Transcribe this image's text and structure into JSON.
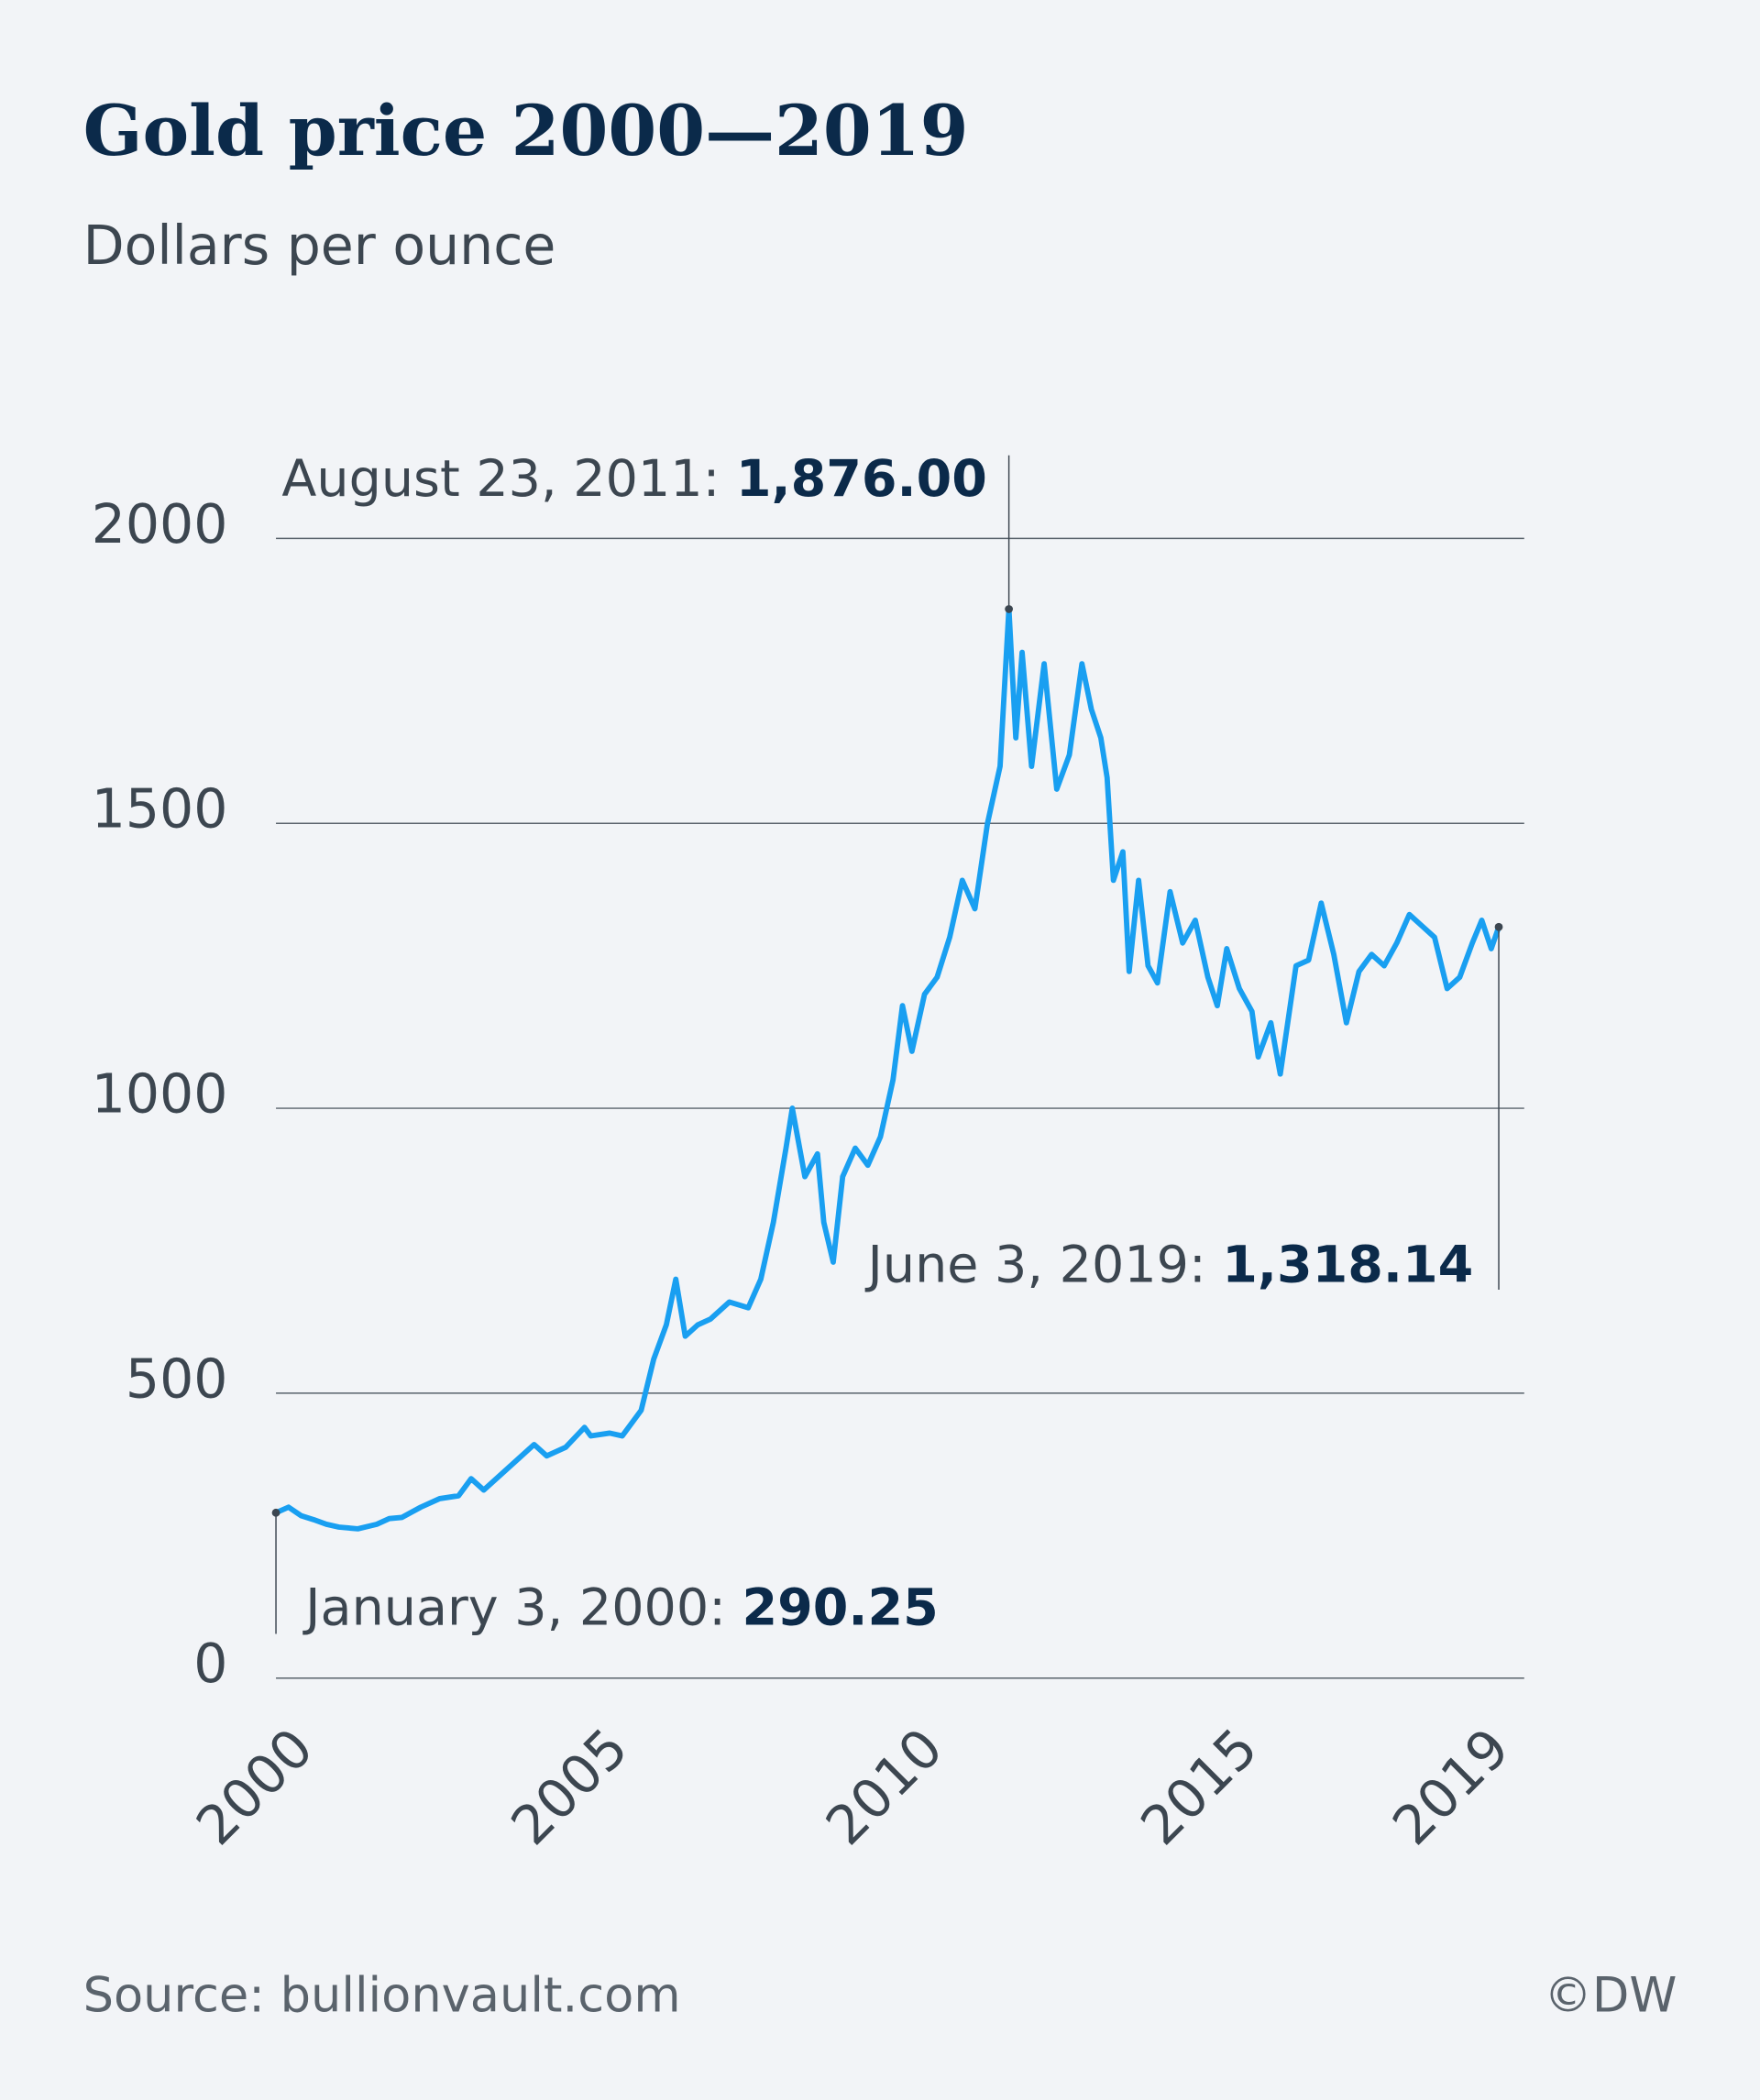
{
  "chart_data": {
    "type": "line",
    "title": "Gold price 2000—2019",
    "subtitle": "Dollars per ounce",
    "source": "Source: bullionvault.com",
    "credit": "©DW",
    "xlim": [
      2000,
      2019.42
    ],
    "xticks": [
      2000,
      2005,
      2010,
      2015,
      2019
    ],
    "ylim": [
      0,
      2000
    ],
    "yticks": [
      0,
      500,
      1000,
      1500,
      2000
    ],
    "grid": true,
    "series": [
      {
        "color": "#199ff1",
        "x": [
          2000.0,
          2000.2,
          2000.4,
          2000.6,
          2000.8,
          2001.0,
          2001.3,
          2001.6,
          2001.8,
          2002.0,
          2002.3,
          2002.6,
          2002.9,
          2003.1,
          2003.3,
          2003.6,
          2003.9,
          2004.1,
          2004.3,
          2004.6,
          2004.9,
          2005.0,
          2005.3,
          2005.5,
          2005.8,
          2006.0,
          2006.2,
          2006.35,
          2006.5,
          2006.7,
          2006.9,
          2007.2,
          2007.5,
          2007.7,
          2007.9,
          2008.1,
          2008.2,
          2008.4,
          2008.6,
          2008.7,
          2008.85,
          2009.0,
          2009.2,
          2009.4,
          2009.6,
          2009.8,
          2009.95,
          2010.1,
          2010.3,
          2010.5,
          2010.7,
          2010.9,
          2011.1,
          2011.3,
          2011.5,
          2011.64,
          2011.75,
          2011.85,
          2012.0,
          2012.2,
          2012.4,
          2012.6,
          2012.8,
          2012.95,
          2013.1,
          2013.2,
          2013.3,
          2013.45,
          2013.55,
          2013.7,
          2013.85,
          2014.0,
          2014.2,
          2014.4,
          2014.6,
          2014.8,
          2014.95,
          2015.1,
          2015.3,
          2015.5,
          2015.6,
          2015.8,
          2015.95,
          2016.2,
          2016.4,
          2016.6,
          2016.8,
          2017.0,
          2017.2,
          2017.4,
          2017.6,
          2017.8,
          2018.0,
          2018.2,
          2018.4,
          2018.6,
          2018.8,
          2019.0,
          2019.15,
          2019.3,
          2019.42
        ],
        "values": [
          290.25,
          300,
          285,
          278,
          270,
          265,
          262,
          270,
          280,
          282,
          300,
          315,
          320,
          350,
          330,
          360,
          390,
          410,
          390,
          405,
          440,
          425,
          430,
          425,
          470,
          560,
          620,
          700,
          600,
          620,
          630,
          660,
          650,
          700,
          800,
          930,
          1000,
          880,
          920,
          800,
          730,
          880,
          930,
          900,
          950,
          1050,
          1180,
          1100,
          1200,
          1230,
          1300,
          1400,
          1350,
          1500,
          1600,
          1876,
          1650,
          1800,
          1600,
          1780,
          1560,
          1620,
          1780,
          1700,
          1650,
          1580,
          1400,
          1450,
          1240,
          1400,
          1250,
          1220,
          1380,
          1290,
          1330,
          1230,
          1180,
          1280,
          1210,
          1170,
          1090,
          1150,
          1060,
          1250,
          1260,
          1360,
          1270,
          1150,
          1240,
          1270,
          1250,
          1290,
          1340,
          1320,
          1300,
          1210,
          1230,
          1290,
          1330,
          1280,
          1318.14
        ]
      }
    ],
    "annotations": [
      {
        "text": "August 23, 2011: ",
        "x": 2011.64,
        "value": 1876,
        "label": "1,876.00"
      },
      {
        "text": "June 3, 2019: ",
        "x": 2019.42,
        "value": 1318.14,
        "label": "1,318.14"
      },
      {
        "text": "January 3, 2000: ",
        "x": 2000.0,
        "value": 290.25
      }
    ]
  }
}
